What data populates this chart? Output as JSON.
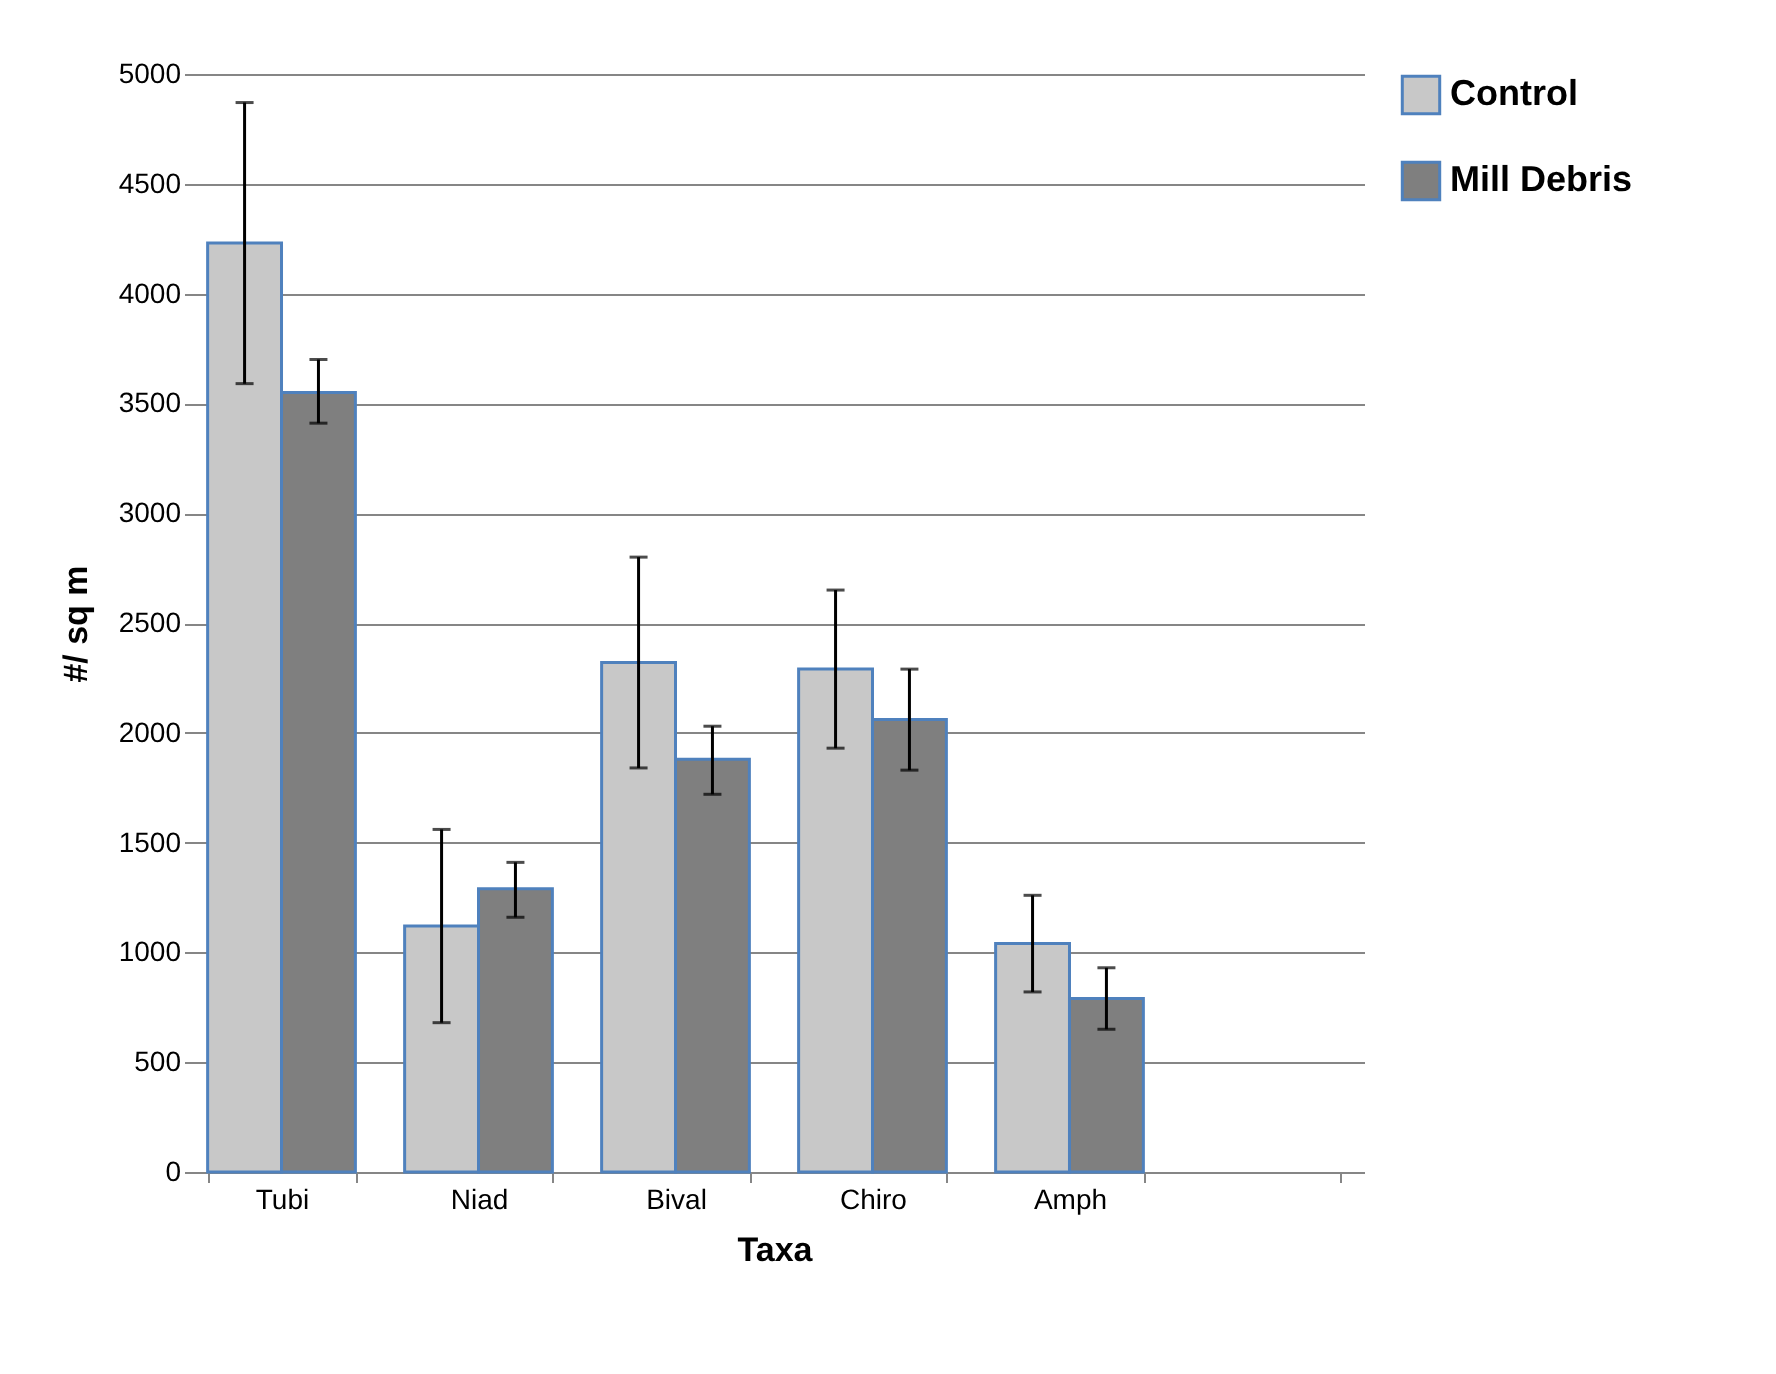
{
  "chart_data": {
    "type": "bar",
    "xlabel": "Taxa",
    "ylabel": "#/ sq m",
    "categories": [
      "Tubi",
      "Niad",
      "Bival",
      "Chiro",
      "Amph",
      null
    ],
    "series": [
      {
        "name": "Control",
        "color": "#c8c8c8",
        "values": [
          4230,
          1120,
          2320,
          2290,
          1040,
          null
        ],
        "errors": [
          [
            3590,
            4870
          ],
          [
            680,
            1560
          ],
          [
            1840,
            2800
          ],
          [
            1930,
            2650
          ],
          [
            820,
            1260
          ],
          null
        ]
      },
      {
        "name": "Mill Debris",
        "color": "#7f7f7f",
        "values": [
          3550,
          1290,
          1880,
          2060,
          790,
          null
        ],
        "errors": [
          [
            3410,
            3700
          ],
          [
            1160,
            1410
          ],
          [
            1720,
            2030
          ],
          [
            1830,
            2290
          ],
          [
            650,
            930
          ],
          null
        ]
      }
    ],
    "ylim": [
      0,
      5000
    ],
    "yticks": [
      0,
      500,
      1000,
      1500,
      2000,
      2500,
      3000,
      3500,
      4000,
      4500,
      5000
    ],
    "grid": "y",
    "legend": "right"
  }
}
